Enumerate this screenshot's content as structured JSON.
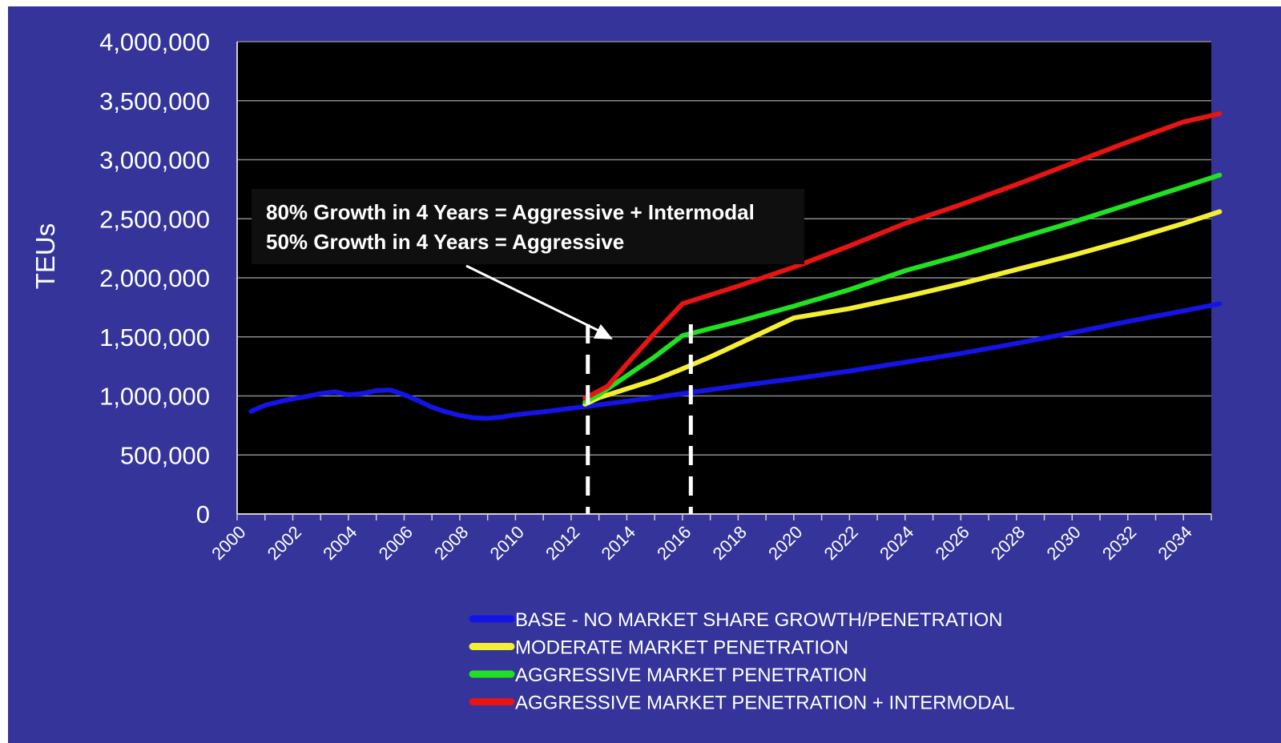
{
  "chart_data": {
    "type": "line",
    "title": "",
    "xlabel": "",
    "ylabel": "TEUs",
    "xlim": [
      2000,
      2035
    ],
    "ylim": [
      0,
      4000000
    ],
    "y_ticks": [
      {
        "value": 0,
        "label": "0"
      },
      {
        "value": 500000,
        "label": "500,000"
      },
      {
        "value": 1000000,
        "label": "1,000,000"
      },
      {
        "value": 1500000,
        "label": "1,500,000"
      },
      {
        "value": 2000000,
        "label": "2,000,000"
      },
      {
        "value": 2500000,
        "label": "2,500,000"
      },
      {
        "value": 3000000,
        "label": "3,000,000"
      },
      {
        "value": 3500000,
        "label": "3,500,000"
      },
      {
        "value": 4000000,
        "label": "4,000,000"
      }
    ],
    "x_ticks": [
      "2000",
      "2002",
      "2004",
      "2006",
      "2008",
      "2010",
      "2012",
      "2014",
      "2016",
      "2018",
      "2020",
      "2022",
      "2024",
      "2026",
      "2028",
      "2030",
      "2032",
      "2034"
    ],
    "grid": true,
    "legend_position": "bottom",
    "series": [
      {
        "name": "BASE - NO MARKET SHARE GROWTH/PENETRATION",
        "color": "#1414e6",
        "x": [
          2000.5,
          2001,
          2001.5,
          2002,
          2002.5,
          2003,
          2003.5,
          2004,
          2004.5,
          2005,
          2005.5,
          2006,
          2006.5,
          2007,
          2007.5,
          2008,
          2008.5,
          2009,
          2009.5,
          2010,
          2011,
          2012,
          2013,
          2014,
          2015,
          2016,
          2018,
          2020,
          2022,
          2024,
          2026,
          2028,
          2030,
          2032,
          2034,
          2035.3
        ],
        "y": [
          870000,
          920000,
          950000,
          975000,
          995000,
          1020000,
          1035000,
          1010000,
          1020000,
          1045000,
          1050000,
          1010000,
          960000,
          905000,
          865000,
          835000,
          815000,
          810000,
          820000,
          840000,
          865000,
          895000,
          925000,
          955000,
          985000,
          1020000,
          1085000,
          1145000,
          1210000,
          1285000,
          1360000,
          1445000,
          1535000,
          1630000,
          1720000,
          1780000
        ]
      },
      {
        "name": "MODERATE MARKET PENETRATION",
        "color": "#f5ef33",
        "x": [
          2012.5,
          2013,
          2014,
          2015,
          2016,
          2017,
          2018,
          2019,
          2020,
          2022,
          2024,
          2026,
          2028,
          2030,
          2032,
          2034,
          2035.3
        ],
        "y": [
          930000,
          985000,
          1060000,
          1135000,
          1230000,
          1330000,
          1440000,
          1550000,
          1660000,
          1740000,
          1840000,
          1950000,
          2070000,
          2190000,
          2320000,
          2460000,
          2560000
        ]
      },
      {
        "name": "AGGRESSIVE MARKET PENETRATION",
        "color": "#22e022",
        "x": [
          2012.5,
          2013,
          2014,
          2015,
          2016,
          2017,
          2018,
          2020,
          2022,
          2024,
          2026,
          2028,
          2030,
          2032,
          2034,
          2035.3
        ],
        "y": [
          950000,
          1010000,
          1170000,
          1330000,
          1510000,
          1570000,
          1630000,
          1760000,
          1900000,
          2060000,
          2190000,
          2330000,
          2470000,
          2620000,
          2770000,
          2870000
        ]
      },
      {
        "name": "AGGRESSIVE MARKET PENETRATION + INTERMODAL",
        "color": "#e81414",
        "x": [
          2012.5,
          2013.3,
          2014,
          2015,
          2016,
          2018,
          2020,
          2022,
          2024,
          2026,
          2028,
          2030,
          2032,
          2034,
          2035.3
        ],
        "y": [
          980000,
          1080000,
          1270000,
          1530000,
          1780000,
          1930000,
          2090000,
          2270000,
          2460000,
          2620000,
          2790000,
          2970000,
          3150000,
          3320000,
          3390000
        ]
      }
    ],
    "annotations": {
      "lines": [
        "80% Growth in 4 Years = Aggressive + Intermodal",
        "50% Growth in 4 Years = Aggressive"
      ],
      "dashed_markers_x": [
        2012.6,
        2016.3
      ],
      "arrow_target": {
        "x": 2013.5,
        "y": 1480000
      }
    }
  },
  "colors": {
    "panel_bg": "#35349a",
    "plot_bg": "#000000",
    "grid": "#8a8a8a",
    "text": "#ffffff"
  }
}
